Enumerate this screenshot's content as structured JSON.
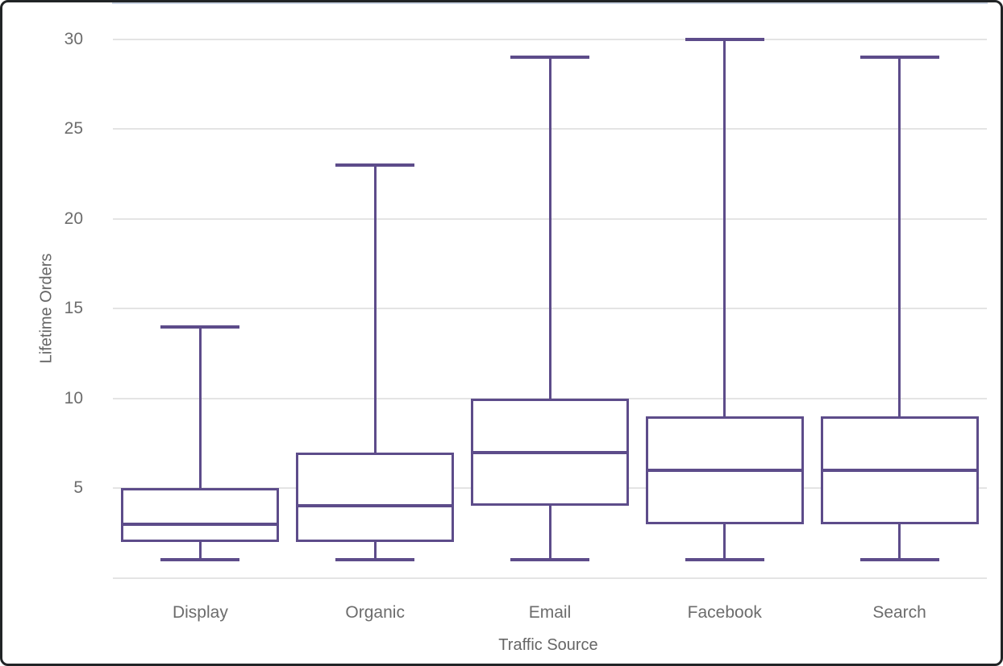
{
  "chart_data": {
    "type": "box",
    "title": "",
    "xlabel": "Traffic Source",
    "ylabel": "Lifetime Orders",
    "categories": [
      "Display",
      "Organic",
      "Email",
      "Facebook",
      "Search"
    ],
    "series": [
      {
        "name": "Display",
        "min": 1,
        "q1": 2,
        "median": 3,
        "q3": 5,
        "max": 14
      },
      {
        "name": "Organic",
        "min": 1,
        "q1": 2,
        "median": 4,
        "q3": 7,
        "max": 23
      },
      {
        "name": "Email",
        "min": 1,
        "q1": 4,
        "median": 7,
        "q3": 10,
        "max": 29
      },
      {
        "name": "Facebook",
        "min": 1,
        "q1": 3,
        "median": 6,
        "q3": 9,
        "max": 30
      },
      {
        "name": "Search",
        "min": 1,
        "q1": 3,
        "median": 6,
        "q3": 9,
        "max": 29
      }
    ],
    "yticks": [
      5,
      10,
      15,
      20,
      25,
      30
    ],
    "ylim": [
      0,
      30
    ],
    "grid": "horizontal-only",
    "legend": "none",
    "colors": {
      "box_stroke": "#5d4c8a",
      "box_fill": "#ffffff",
      "gridline": "#e4e4e4",
      "axis_line": "#c9d3e3",
      "tick_text": "#6c6c6c",
      "axis_title_text": "#666666",
      "frame_border": "#212426",
      "background": "#ffffff"
    }
  }
}
